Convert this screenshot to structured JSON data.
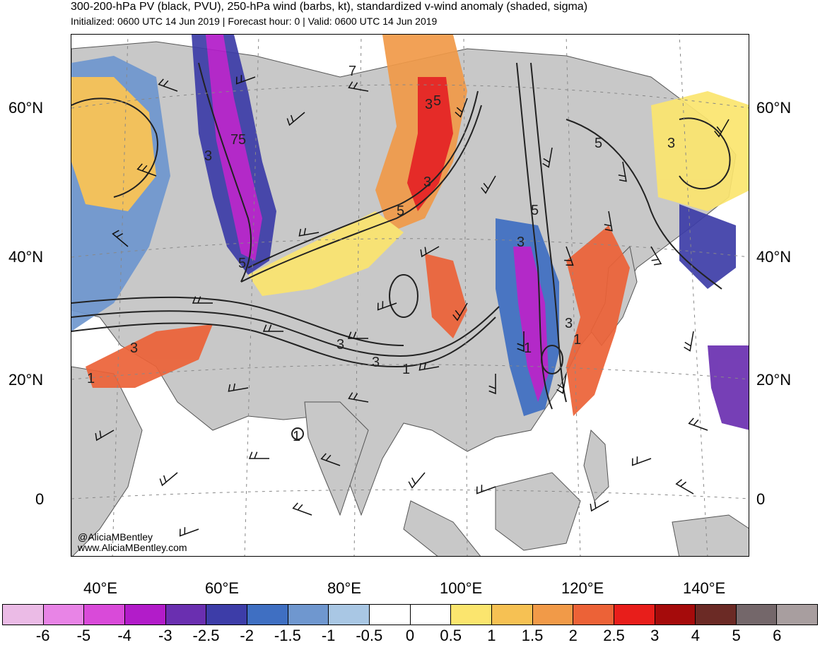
{
  "header": {
    "title": "300-200-hPa PV (black, PVU), 250-hPa wind (barbs, kt), standardized v-wind anomaly (shaded, sigma)",
    "subtitle": "Initialized: 0600 UTC 14 Jun 2019 | Forecast hour: 0 | Valid: 0600 UTC 14 Jun 2019"
  },
  "axes": {
    "lat_left": [
      "60°N",
      "40°N",
      "20°N",
      "0"
    ],
    "lat_right": [
      "60°N",
      "40°N",
      "20°N",
      "0"
    ],
    "lon": [
      "40°E",
      "60°E",
      "80°E",
      "100°E",
      "120°E",
      "140°E"
    ]
  },
  "credits": {
    "handle": "@AliciaMBentley",
    "website": "www.AliciaMBentley.com"
  },
  "colorbar": {
    "labels": [
      "-6",
      "-5",
      "-4",
      "-3",
      "-2.5",
      "-2",
      "-1.5",
      "-1",
      "-0.5",
      "0",
      "0.5",
      "1",
      "1.5",
      "2",
      "2.5",
      "3",
      "4",
      "5",
      "6"
    ],
    "colors": [
      "#ebbbe6",
      "#e884e6",
      "#d94ad9",
      "#b21cc9",
      "#6a2fb0",
      "#3d3da8",
      "#3f6fc2",
      "#6f97cf",
      "#a9c7e4",
      "#ffffff",
      "#ffffff",
      "#fbe56e",
      "#f6c153",
      "#f19a48",
      "#ec6237",
      "#e81e1b",
      "#a50b0b",
      "#6b2a25",
      "#74676a",
      "#a89e9f"
    ]
  },
  "contour_labels": [
    "3",
    "7",
    "5",
    "1",
    "5",
    "3",
    "3",
    "7",
    "5",
    "3",
    "3",
    "1",
    "3",
    "1",
    "5",
    "3",
    "1",
    "3",
    "5",
    "3",
    "5",
    "1"
  ],
  "map": {
    "land_color": "#c8c8c8",
    "ocean_color": "#ffffff",
    "coast_color": "#555555",
    "contour_color": "#222222"
  }
}
